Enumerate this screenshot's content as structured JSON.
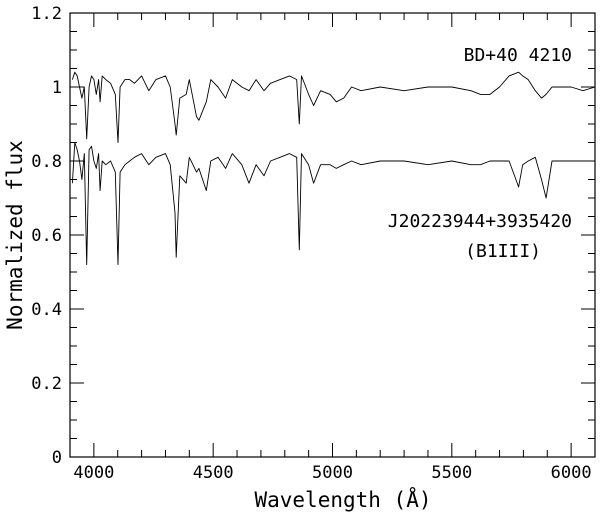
{
  "chart_data": {
    "type": "line",
    "title": "",
    "xlabel": "Wavelength (Å)",
    "ylabel": "Normalized flux",
    "xlim": [
      3900,
      6100
    ],
    "ylim": [
      0,
      1.2
    ],
    "grid": false,
    "x_ticks": [
      4000,
      4500,
      5000,
      5500,
      6000
    ],
    "x_tick_labels": [
      "4000",
      "4500",
      "5000",
      "5500",
      "6000"
    ],
    "y_ticks": [
      0,
      0.2,
      0.4,
      0.6,
      0.8,
      1,
      1.2
    ],
    "y_tick_labels": [
      "0",
      "0.2",
      "0.4",
      "0.6",
      "0.8",
      "1",
      "1.2"
    ],
    "annotations": {
      "top_star": "BD+40 4210",
      "bottom_star": "J20223944+3935420",
      "bottom_class": "(B1III)"
    },
    "series": [
      {
        "x": [
          3910,
          3920,
          3930,
          3940,
          3950,
          3960,
          3970,
          3980,
          3990,
          4000,
          4010,
          4020,
          4026,
          4035,
          4050,
          4070,
          4090,
          4101,
          4110,
          4130,
          4150,
          4170,
          4200,
          4230,
          4260,
          4300,
          4320,
          4340,
          4345,
          4360,
          4387,
          4400,
          4430,
          4440,
          4471,
          4490,
          4520,
          4552,
          4580,
          4620,
          4650,
          4680,
          4713,
          4740,
          4780,
          4820,
          4850,
          4861,
          4870,
          4900,
          4921,
          4950,
          4990,
          5016,
          5047,
          5080,
          5120,
          5200,
          5300,
          5400,
          5500,
          5580,
          5620,
          5660,
          5700,
          5740,
          5780,
          5797,
          5820,
          5850,
          5876,
          5895,
          5920,
          5960,
          6000,
          6050,
          6100
        ],
        "values": [
          1.02,
          1.04,
          1.03,
          1.0,
          0.97,
          1.0,
          0.86,
          1.0,
          1.03,
          1.02,
          0.98,
          1.02,
          0.96,
          1.03,
          1.02,
          1.01,
          0.98,
          0.85,
          1.0,
          1.02,
          1.02,
          1.01,
          1.03,
          0.99,
          1.02,
          1.03,
          1.0,
          0.9,
          0.87,
          0.97,
          0.98,
          1.02,
          0.92,
          0.91,
          0.96,
          1.02,
          1.0,
          0.97,
          1.02,
          1.0,
          0.99,
          1.02,
          0.99,
          1.01,
          1.02,
          1.03,
          1.02,
          0.9,
          1.03,
          0.98,
          0.95,
          0.99,
          0.98,
          0.96,
          0.97,
          1.0,
          0.99,
          1.0,
          0.99,
          1.0,
          1.0,
          0.99,
          0.98,
          0.98,
          1.0,
          1.03,
          1.04,
          1.03,
          1.02,
          0.99,
          0.97,
          0.98,
          1.0,
          1.0,
          1.0,
          0.99,
          1.0
        ]
      },
      {
        "x": [
          3910,
          3920,
          3930,
          3940,
          3950,
          3960,
          3970,
          3980,
          3990,
          4000,
          4010,
          4020,
          4026,
          4035,
          4050,
          4070,
          4090,
          4101,
          4110,
          4130,
          4150,
          4170,
          4200,
          4230,
          4260,
          4300,
          4320,
          4340,
          4345,
          4360,
          4387,
          4400,
          4430,
          4440,
          4471,
          4490,
          4520,
          4552,
          4580,
          4620,
          4650,
          4680,
          4713,
          4740,
          4780,
          4820,
          4850,
          4861,
          4870,
          4900,
          4921,
          4950,
          4990,
          5016,
          5047,
          5080,
          5120,
          5200,
          5300,
          5400,
          5500,
          5580,
          5620,
          5660,
          5700,
          5740,
          5780,
          5797,
          5820,
          5850,
          5876,
          5895,
          5920,
          5960,
          6000,
          6050,
          6100
        ],
        "values": [
          0.74,
          0.85,
          0.83,
          0.8,
          0.75,
          0.82,
          0.52,
          0.83,
          0.84,
          0.8,
          0.78,
          0.82,
          0.72,
          0.8,
          0.79,
          0.8,
          0.77,
          0.52,
          0.77,
          0.79,
          0.8,
          0.81,
          0.82,
          0.79,
          0.81,
          0.82,
          0.79,
          0.66,
          0.54,
          0.76,
          0.74,
          0.81,
          0.77,
          0.78,
          0.72,
          0.8,
          0.81,
          0.78,
          0.82,
          0.79,
          0.74,
          0.79,
          0.76,
          0.8,
          0.81,
          0.82,
          0.81,
          0.56,
          0.82,
          0.79,
          0.74,
          0.79,
          0.79,
          0.78,
          0.79,
          0.8,
          0.79,
          0.8,
          0.8,
          0.79,
          0.8,
          0.79,
          0.79,
          0.8,
          0.8,
          0.8,
          0.73,
          0.79,
          0.8,
          0.81,
          0.75,
          0.7,
          0.8,
          0.8,
          0.8,
          0.8,
          0.8
        ]
      }
    ]
  }
}
